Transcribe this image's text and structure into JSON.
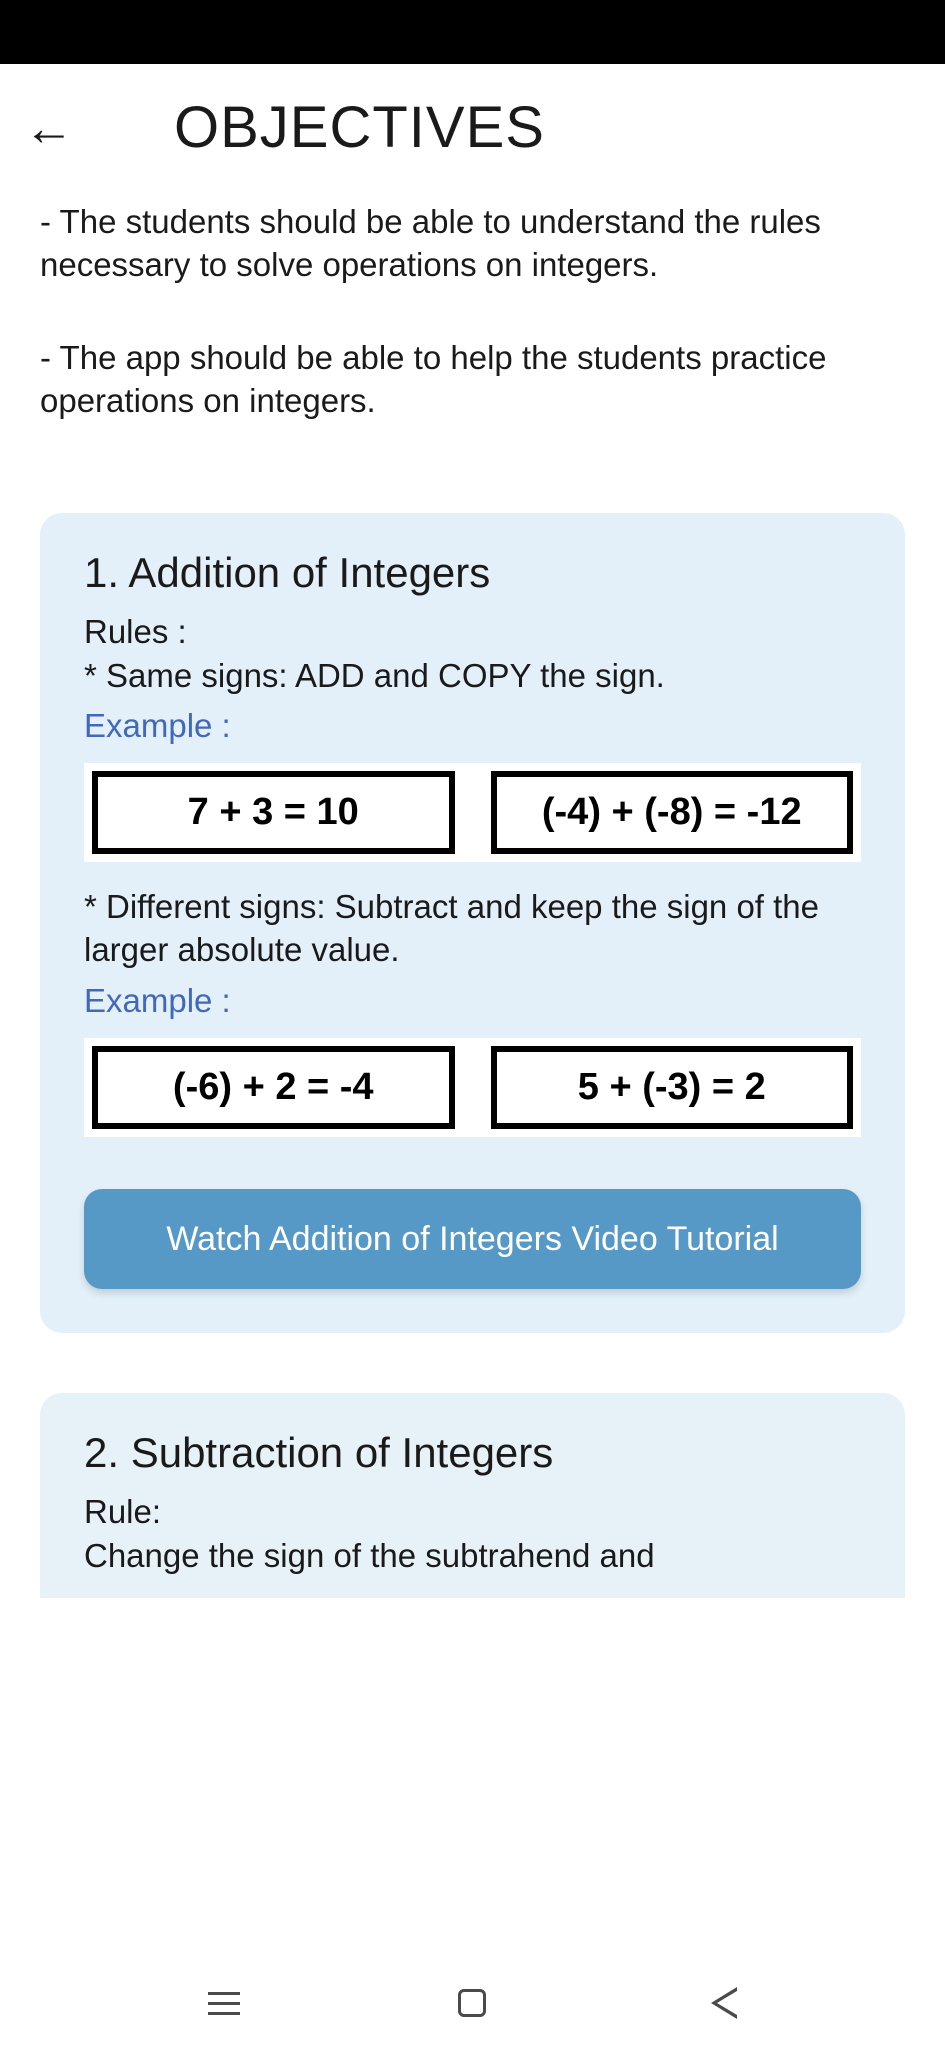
{
  "header": {
    "title": "OBJECTIVES"
  },
  "objectives": [
    "- The students should be able to understand the rules necessary to solve operations on integers.",
    "- The app should be able to help the students practice operations on integers."
  ],
  "card1": {
    "title": "1. Addition of Integers",
    "rules_label": "Rules :",
    "rule1": " * Same signs:  ADD and COPY the sign.",
    "example_label1": "Example :",
    "examples1": [
      "7 + 3 = 10",
      "(-4) + (-8) = -12"
    ],
    "rule2": " * Different signs:  Subtract and keep the sign of the larger absolute value.",
    "example_label2": "Example :",
    "examples2": [
      "(-6) + 2 = -4",
      "5 + (-3) = 2"
    ],
    "button_label": "Watch Addition of Integers Video Tutorial"
  },
  "card2": {
    "title": "2. Subtraction of Integers",
    "rule_label": "Rule:",
    "rule_text": "Change the sign of the subtrahend and"
  },
  "colors": {
    "card_bg": "#e3f0fa",
    "card2_bg": "#e7f1f8",
    "example_link": "#4169b8",
    "button_bg": "#5699c6",
    "button_text": "#ffffff",
    "text": "#1a1a1a",
    "border": "#000000",
    "status_bar": "#000000"
  }
}
